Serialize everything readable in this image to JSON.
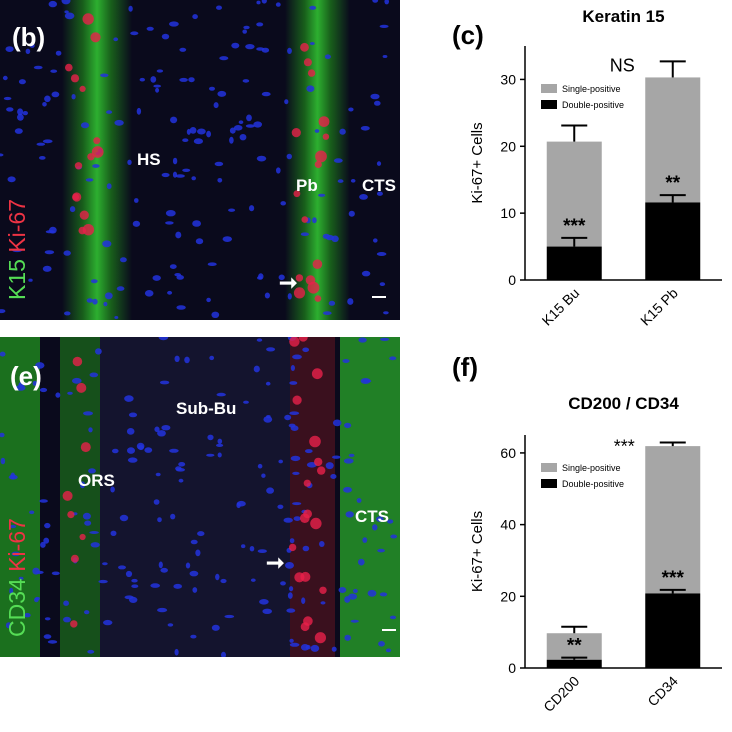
{
  "panels": {
    "b": {
      "label": "(b)",
      "stain_green": "K15",
      "stain_red": "Ki-67",
      "regions": [
        "HS",
        "Pb",
        "CTS"
      ]
    },
    "e": {
      "label": "(e)",
      "stain_green": "CD34",
      "stain_red": "Ki-67",
      "regions": [
        "ORS",
        "Sub-Bu",
        "CTS"
      ]
    },
    "c": {
      "label": "(c)"
    },
    "f": {
      "label": "(f)"
    }
  },
  "colors": {
    "single_positive": "#a6a6a6",
    "double_positive": "#000000",
    "stain_green": "#33cc33",
    "stain_red": "#e8214a",
    "nuclei": "#2233dd"
  },
  "chart_data": [
    {
      "type": "bar",
      "stacked": true,
      "title": "Keratin 15",
      "ylabel": "Ki-67+ Cells",
      "categories": [
        "K15 Bu",
        "K15 Pb"
      ],
      "series": [
        {
          "name": "Double-positive",
          "values": [
            5,
            11.6
          ],
          "errors": [
            1.3,
            1.1
          ],
          "annotations": [
            "***",
            "**"
          ]
        },
        {
          "name": "Single-positive",
          "values": [
            15.7,
            18.7
          ],
          "errors": [
            2.4,
            2.4
          ]
        }
      ],
      "ylim": [
        0,
        35
      ],
      "yticks": [
        0,
        10,
        20,
        30
      ],
      "annotations": [
        {
          "text": "NS",
          "category": "K15 Pb"
        }
      ],
      "legend": "top-left"
    },
    {
      "type": "bar",
      "stacked": true,
      "title": "CD200 / CD34",
      "ylabel": "Ki-67+ Cells",
      "categories": [
        "CD200",
        "CD34"
      ],
      "series": [
        {
          "name": "Double-positive",
          "values": [
            2.3,
            20.8
          ],
          "errors": [
            0.6,
            1.0
          ],
          "annotations": [
            "**",
            "***"
          ]
        },
        {
          "name": "Single-positive",
          "values": [
            7.4,
            41.1
          ],
          "errors": [
            1.8,
            1.0
          ]
        }
      ],
      "ylim": [
        0,
        65
      ],
      "yticks": [
        0,
        20,
        40,
        60
      ],
      "annotations": [
        {
          "text": "***",
          "category": "CD34"
        }
      ],
      "legend": "top-left"
    }
  ]
}
